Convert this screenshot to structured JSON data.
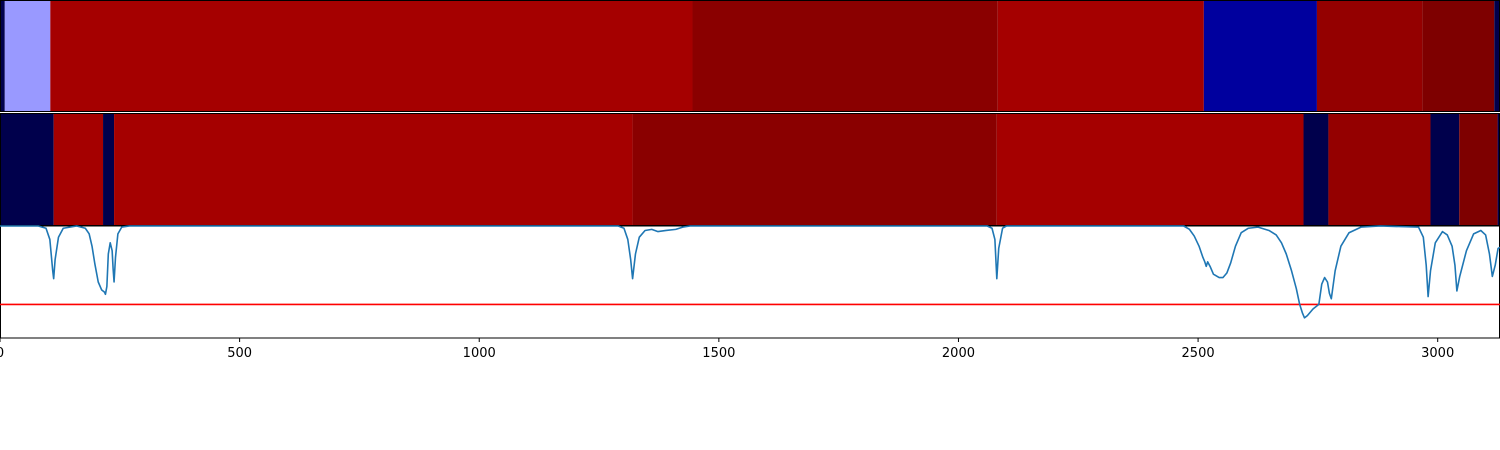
{
  "chart_data": [
    {
      "type": "heatmap",
      "panel": "top-band",
      "x_range": [
        0,
        3130
      ],
      "segments": [
        {
          "start": 0,
          "end": 10,
          "color": "#00004c"
        },
        {
          "start": 10,
          "end": 105,
          "color": "#9999ff"
        },
        {
          "start": 105,
          "end": 1445,
          "color": "#a50000"
        },
        {
          "start": 1445,
          "end": 2082,
          "color": "#8a0000"
        },
        {
          "start": 2082,
          "end": 2512,
          "color": "#a50000"
        },
        {
          "start": 2512,
          "end": 2748,
          "color": "#00009e"
        },
        {
          "start": 2748,
          "end": 2968,
          "color": "#940000"
        },
        {
          "start": 2968,
          "end": 3118,
          "color": "#7e0000"
        },
        {
          "start": 3118,
          "end": 3130,
          "color": "#00004c"
        }
      ]
    },
    {
      "type": "heatmap",
      "panel": "middle-band",
      "x_range": [
        0,
        3130
      ],
      "segments": [
        {
          "start": 0,
          "end": 112,
          "color": "#00004c"
        },
        {
          "start": 112,
          "end": 215,
          "color": "#a50000"
        },
        {
          "start": 215,
          "end": 238,
          "color": "#00004c"
        },
        {
          "start": 238,
          "end": 1320,
          "color": "#a50000"
        },
        {
          "start": 1320,
          "end": 2080,
          "color": "#8a0000"
        },
        {
          "start": 2080,
          "end": 2720,
          "color": "#a50000"
        },
        {
          "start": 2720,
          "end": 2772,
          "color": "#00004c"
        },
        {
          "start": 2772,
          "end": 2985,
          "color": "#940000"
        },
        {
          "start": 2985,
          "end": 3045,
          "color": "#00004c"
        },
        {
          "start": 3045,
          "end": 3125,
          "color": "#7e0000"
        },
        {
          "start": 3125,
          "end": 3130,
          "color": "#00004c"
        }
      ]
    },
    {
      "type": "line",
      "panel": "bottom-signal",
      "x_range": [
        0,
        3130
      ],
      "y_range": [
        0,
        1
      ],
      "series": [
        {
          "color": "#1f77b4",
          "points": [
            [
              0,
              1.0
            ],
            [
              80,
              1.0
            ],
            [
              96,
              0.98
            ],
            [
              104,
              0.88
            ],
            [
              110,
              0.6
            ],
            [
              112,
              0.53
            ],
            [
              115,
              0.7
            ],
            [
              122,
              0.9
            ],
            [
              132,
              0.98
            ],
            [
              160,
              1.0
            ],
            [
              178,
              0.98
            ],
            [
              186,
              0.93
            ],
            [
              192,
              0.82
            ],
            [
              198,
              0.66
            ],
            [
              205,
              0.5
            ],
            [
              212,
              0.43
            ],
            [
              218,
              0.41
            ],
            [
              220,
              0.39
            ],
            [
              223,
              0.46
            ],
            [
              226,
              0.75
            ],
            [
              230,
              0.85
            ],
            [
              234,
              0.78
            ],
            [
              236,
              0.62
            ],
            [
              238,
              0.5
            ],
            [
              241,
              0.72
            ],
            [
              246,
              0.93
            ],
            [
              254,
              0.99
            ],
            [
              270,
              1.0
            ],
            [
              1290,
              1.0
            ],
            [
              1302,
              0.98
            ],
            [
              1310,
              0.88
            ],
            [
              1316,
              0.7
            ],
            [
              1320,
              0.53
            ],
            [
              1326,
              0.75
            ],
            [
              1334,
              0.9
            ],
            [
              1346,
              0.96
            ],
            [
              1360,
              0.97
            ],
            [
              1373,
              0.95
            ],
            [
              1390,
              0.96
            ],
            [
              1410,
              0.97
            ],
            [
              1425,
              0.99
            ],
            [
              1440,
              1.0
            ],
            [
              2060,
              1.0
            ],
            [
              2070,
              0.98
            ],
            [
              2076,
              0.88
            ],
            [
              2080,
              0.53
            ],
            [
              2084,
              0.8
            ],
            [
              2092,
              0.98
            ],
            [
              2100,
              1.0
            ],
            [
              2470,
              1.0
            ],
            [
              2482,
              0.97
            ],
            [
              2492,
              0.91
            ],
            [
              2502,
              0.82
            ],
            [
              2510,
              0.72
            ],
            [
              2514,
              0.68
            ],
            [
              2517,
              0.64
            ],
            [
              2520,
              0.68
            ],
            [
              2525,
              0.64
            ],
            [
              2532,
              0.57
            ],
            [
              2544,
              0.54
            ],
            [
              2552,
              0.54
            ],
            [
              2560,
              0.58
            ],
            [
              2568,
              0.67
            ],
            [
              2578,
              0.82
            ],
            [
              2590,
              0.94
            ],
            [
              2605,
              0.98
            ],
            [
              2625,
              0.99
            ],
            [
              2648,
              0.96
            ],
            [
              2663,
              0.92
            ],
            [
              2674,
              0.85
            ],
            [
              2684,
              0.75
            ],
            [
              2695,
              0.6
            ],
            [
              2705,
              0.44
            ],
            [
              2712,
              0.3
            ],
            [
              2718,
              0.22
            ],
            [
              2722,
              0.18
            ],
            [
              2728,
              0.2
            ],
            [
              2740,
              0.26
            ],
            [
              2752,
              0.3
            ],
            [
              2758,
              0.48
            ],
            [
              2764,
              0.54
            ],
            [
              2770,
              0.5
            ],
            [
              2774,
              0.4
            ],
            [
              2778,
              0.35
            ],
            [
              2786,
              0.6
            ],
            [
              2798,
              0.82
            ],
            [
              2815,
              0.94
            ],
            [
              2840,
              0.99
            ],
            [
              2880,
              1.0
            ],
            [
              2960,
              0.99
            ],
            [
              2970,
              0.9
            ],
            [
              2976,
              0.65
            ],
            [
              2980,
              0.37
            ],
            [
              2985,
              0.6
            ],
            [
              2995,
              0.85
            ],
            [
              3010,
              0.95
            ],
            [
              3020,
              0.92
            ],
            [
              3030,
              0.82
            ],
            [
              3036,
              0.65
            ],
            [
              3040,
              0.42
            ],
            [
              3046,
              0.55
            ],
            [
              3060,
              0.78
            ],
            [
              3075,
              0.93
            ],
            [
              3090,
              0.96
            ],
            [
              3100,
              0.92
            ],
            [
              3108,
              0.75
            ],
            [
              3114,
              0.55
            ],
            [
              3120,
              0.65
            ],
            [
              3126,
              0.8
            ],
            [
              3130,
              0.81
            ]
          ]
        }
      ]
    }
  ],
  "reference_line": {
    "y": 0.3,
    "color": "#ff0000"
  },
  "x_ticks": [
    {
      "value": 0,
      "label": "0"
    },
    {
      "value": 500,
      "label": "500"
    },
    {
      "value": 1000,
      "label": "1000"
    },
    {
      "value": 1500,
      "label": "1500"
    },
    {
      "value": 2000,
      "label": "2000"
    },
    {
      "value": 2500,
      "label": "2500"
    },
    {
      "value": 3000,
      "label": "3000"
    }
  ]
}
